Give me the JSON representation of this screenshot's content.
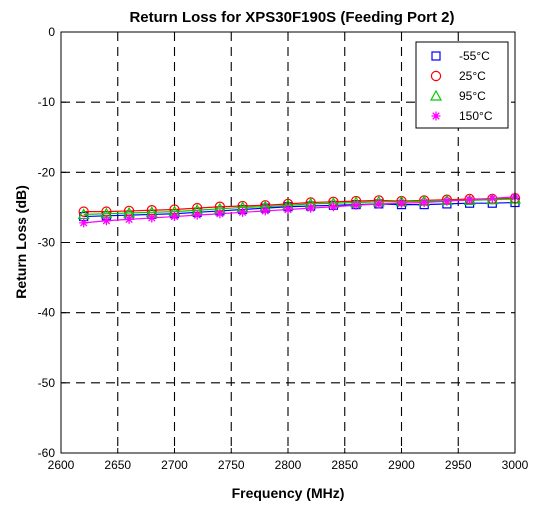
{
  "chart_data": {
    "type": "line",
    "title": "Return Loss for XPS30F190S (Feeding Port 2)",
    "xlabel": "Frequency (MHz)",
    "ylabel": "Return Loss (dB)",
    "xlim": [
      2600,
      3000
    ],
    "ylim": [
      -60,
      0
    ],
    "xticks": [
      2600,
      2650,
      2700,
      2750,
      2800,
      2850,
      2900,
      2950,
      3000
    ],
    "yticks": [
      0,
      -10,
      -20,
      -30,
      -40,
      -50,
      -60
    ],
    "grid": true,
    "legend_position": "top-right",
    "x": [
      2620,
      2640,
      2660,
      2680,
      2700,
      2720,
      2740,
      2760,
      2780,
      2800,
      2820,
      2840,
      2860,
      2880,
      2900,
      2920,
      2940,
      2960,
      2980,
      3000
    ],
    "series": [
      {
        "name": "-55°C",
        "marker": "square",
        "color": "#0000ff",
        "values": [
          -26.3,
          -26.2,
          -26.1,
          -26.0,
          -25.9,
          -25.7,
          -25.5,
          -25.3,
          -25.1,
          -24.9,
          -24.8,
          -24.7,
          -24.6,
          -24.5,
          -24.6,
          -24.6,
          -24.5,
          -24.4,
          -24.4,
          -24.3
        ]
      },
      {
        "name": "25°C",
        "marker": "circle",
        "color": "#ff0000",
        "values": [
          -25.6,
          -25.6,
          -25.5,
          -25.4,
          -25.3,
          -25.1,
          -24.9,
          -24.8,
          -24.7,
          -24.5,
          -24.3,
          -24.2,
          -24.1,
          -24.0,
          -24.1,
          -24.0,
          -23.9,
          -23.8,
          -23.8,
          -23.7
        ]
      },
      {
        "name": "95°C",
        "marker": "triangle",
        "color": "#00cc00",
        "values": [
          -26.0,
          -25.9,
          -25.8,
          -25.7,
          -25.6,
          -25.4,
          -25.2,
          -25.0,
          -24.9,
          -24.7,
          -24.5,
          -24.4,
          -24.3,
          -24.2,
          -24.2,
          -24.1,
          -24.0,
          -24.0,
          -23.9,
          -23.8
        ]
      },
      {
        "name": "150°C",
        "marker": "star",
        "color": "#ff00ff",
        "values": [
          -27.2,
          -26.9,
          -26.7,
          -26.5,
          -26.3,
          -26.1,
          -25.9,
          -25.7,
          -25.5,
          -25.3,
          -25.1,
          -24.9,
          -24.7,
          -24.5,
          -24.4,
          -24.3,
          -24.1,
          -23.9,
          -23.7,
          -23.5
        ]
      }
    ]
  }
}
